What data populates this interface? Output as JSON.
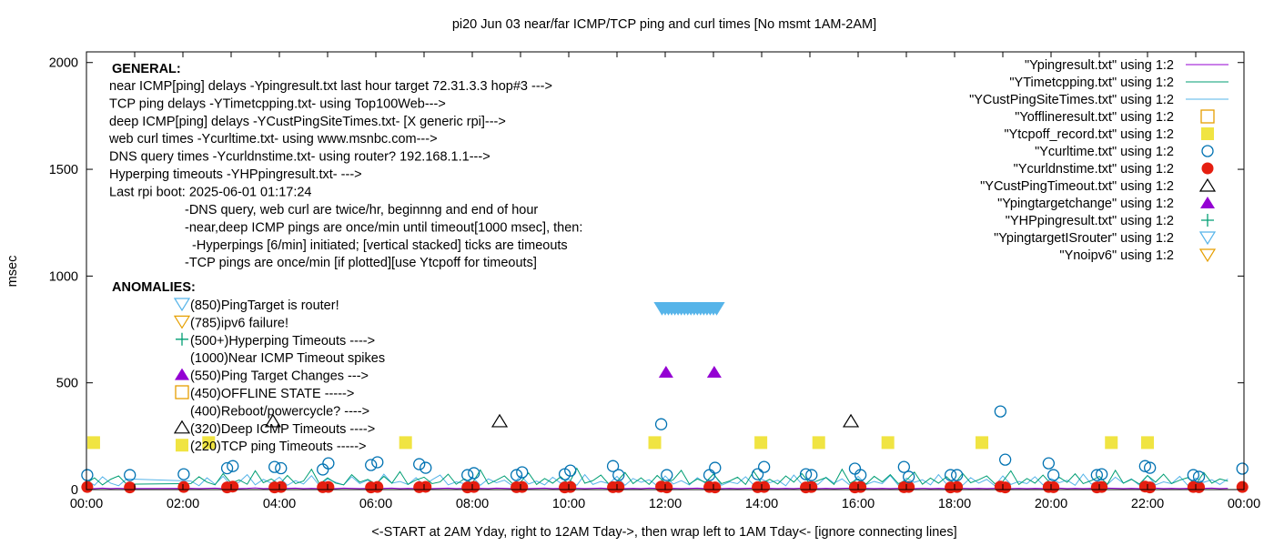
{
  "chart_data": {
    "type": "scatter",
    "title": "pi20 Jun 03  near/far ICMP/TCP ping and curl times [No msmt 1AM-2AM]",
    "xlabel": "<-START at 2AM Yday, right to 12AM Tday->, then wrap left to 1AM Tday<- [ignore connecting lines]",
    "ylabel": "msec",
    "xlim": [
      "00:00",
      "24:00"
    ],
    "ylim": [
      0,
      2050
    ],
    "x_ticks": [
      "00:00",
      "02:00",
      "04:00",
      "06:00",
      "08:00",
      "10:00",
      "12:00",
      "14:00",
      "16:00",
      "18:00",
      "20:00",
      "22:00",
      "00:00"
    ],
    "y_ticks": [
      0,
      500,
      1000,
      1500,
      2000
    ],
    "grid": false,
    "legend_placement": "top-right",
    "colors": {
      "purple": "#9400d3",
      "green": "#009e73",
      "lightblue": "#56b4e9",
      "orange": "#e69f00",
      "yellow": "#f0e442",
      "blue": "#0072b2",
      "red": "#e51e10",
      "black": "#000000"
    },
    "legend": [
      {
        "label": "\"Ypingresult.txt\" using 1:2",
        "style": "line",
        "color": "#9400d3"
      },
      {
        "label": "\"YTimetcpping.txt\" using 1:2",
        "style": "line",
        "color": "#009e73"
      },
      {
        "label": "\"YCustPingSiteTimes.txt\" using 1:2",
        "style": "line",
        "color": "#56b4e9"
      },
      {
        "label": "\"Yofflineresult.txt\" using 1:2",
        "style": "square-open",
        "color": "#e69f00"
      },
      {
        "label": "\"Ytcpoff_record.txt\" using 1:2",
        "style": "square-filled",
        "color": "#f0e442"
      },
      {
        "label": "\"Ycurltime.txt\" using 1:2",
        "style": "circle-open",
        "color": "#0072b2"
      },
      {
        "label": "\"Ycurldnstime.txt\" using 1:2",
        "style": "circle-filled",
        "color": "#e51e10"
      },
      {
        "label": "\"YCustPingTimeout.txt\" using 1:2",
        "style": "triangle-open",
        "color": "#000000"
      },
      {
        "label": "\"Ypingtargetchange\" using 1:2",
        "style": "triangle-filled",
        "color": "#9400d3"
      },
      {
        "label": "\"YHPpingresult.txt\" using 1:2",
        "style": "plus",
        "color": "#009e73"
      },
      {
        "label": "\"YpingtargetISrouter\" using 1:2",
        "style": "triangle-down-open",
        "color": "#56b4e9"
      },
      {
        "label": "\"Ynoipv6\" using 1:2",
        "style": "triangle-down-open",
        "color": "#e69f00"
      }
    ],
    "series": {
      "ping": {
        "segments": [
          {
            "start": "00:00",
            "interval_min": 10,
            "values": [
              6,
              5,
              7,
              5,
              6,
              5
            ]
          },
          {
            "start": "02:10",
            "interval_min": 10,
            "values": [
              6,
              5,
              6,
              7,
              5,
              6,
              5,
              6,
              8,
              5,
              6,
              5,
              6,
              7,
              5,
              6,
              5,
              6,
              5,
              7,
              6,
              5,
              6,
              5,
              6,
              7,
              5,
              6,
              5,
              6,
              5,
              6,
              7,
              5,
              6,
              5,
              6,
              5,
              7,
              6,
              5,
              6,
              5,
              6,
              7,
              5,
              6,
              5,
              6,
              5,
              6,
              7,
              5,
              6,
              5,
              6,
              5,
              7,
              6,
              5,
              6,
              5,
              6,
              7,
              5,
              6,
              5,
              6,
              5,
              6,
              7,
              5,
              6,
              5,
              6,
              5,
              7,
              6,
              5,
              6,
              5,
              6,
              7,
              5,
              6,
              5,
              6,
              5,
              6,
              7,
              5,
              6,
              5,
              6,
              5,
              7,
              6,
              5,
              6,
              5,
              6,
              7,
              5,
              6,
              5,
              6,
              5,
              6,
              7,
              5,
              6,
              5,
              6,
              5,
              7,
              6,
              5,
              6,
              5,
              6,
              7,
              5,
              6,
              5,
              6,
              5,
              6,
              7,
              5,
              6
            ]
          }
        ]
      },
      "tcpping": {
        "segments": [
          {
            "start": "00:00",
            "interval_min": 10,
            "values": [
              30,
              55,
              22,
              48,
              64,
              25
            ]
          },
          {
            "start": "02:10",
            "interval_min": 10,
            "values": [
              28,
              60,
              35,
              22,
              75,
              30,
              45,
              25,
              88,
              32,
              50,
              24,
              66,
              28,
              40,
              95,
              26,
              55,
              30,
              22,
              70,
              35,
              48,
              26,
              62,
              30,
              84,
              24,
              45,
              58,
              28,
              36,
              72,
              25,
              50,
              30,
              92,
              26,
              44,
              64,
              28,
              35,
              78,
              24,
              52,
              30,
              60,
              26,
              100,
              30,
              42,
              68,
              25,
              38,
              80,
              28,
              55,
              24,
              66,
              32,
              46,
              90,
              26,
              50,
              34,
              72,
              28,
              40,
              58,
              24,
              86,
              30,
              48,
              26,
              64,
              35,
              75,
              28,
              42,
              56,
              24,
              95,
              30,
              50,
              26,
              62,
              36,
              70,
              28,
              44,
              82,
              25,
              54,
              30,
              60,
              26,
              76,
              32,
              46,
              64,
              28,
              38,
              88,
              24,
              52,
              30,
              68,
              26,
              58,
              34,
              74,
              28,
              42,
              62,
              25,
              90,
              30,
              48,
              26,
              66,
              35,
              72,
              28,
              44,
              56,
              24,
              80,
              30,
              50,
              40
            ]
          }
        ]
      },
      "custping": {
        "segments": [
          {
            "start": "00:00",
            "interval_min": 10,
            "values": [
              45,
              20,
              60,
              30,
              18,
              50
            ]
          },
          {
            "start": "02:10",
            "interval_min": 10,
            "values": [
              40,
              18,
              55,
              25,
              62,
              20,
              35,
              70,
              22,
              48,
              30,
              58,
              20,
              42,
              26,
              65,
              18,
              50,
              34,
              22,
              60,
              28,
              44,
              20,
              72,
              30,
              38,
              24,
              56,
              20,
              46,
              68,
              22,
              36,
              28,
              60,
              20,
              50,
              32,
              44,
              18,
              66,
              26,
              40,
              22,
              58,
              30,
              48,
              20,
              70,
              24,
              38,
              28,
              62,
              20,
              52,
              34,
              46,
              18,
              64,
              26,
              42,
              22,
              56,
              30,
              74,
              20,
              36,
              28,
              60,
              22,
              48,
              32,
              44,
              18,
              68,
              26,
              40,
              24,
              58,
              30,
              50,
              20,
              62,
              24,
              38,
              28,
              66,
              20,
              54,
              34,
              46,
              22,
              70,
              26,
              42,
              20,
              56,
              30,
              48,
              18,
              64,
              24,
              38,
              28,
              60,
              22,
              52,
              32,
              44,
              20,
              72,
              26,
              40,
              24,
              58,
              30,
              50,
              20,
              66,
              22,
              36,
              28,
              62,
              20,
              54,
              34,
              46,
              24,
              50
            ]
          }
        ]
      }
    },
    "markers": {
      "tcpoff": {
        "y": 220,
        "x": [
          "00:09",
          "02:32",
          "06:37",
          "11:47",
          "13:59",
          "15:11",
          "16:37",
          "18:34",
          "21:15",
          "22:00"
        ]
      },
      "custping_timeout": {
        "y": 320,
        "x": [
          "03:52",
          "08:34",
          "15:51"
        ]
      },
      "pingtarget_change": {
        "y": 550,
        "x": [
          "12:01",
          "13:01"
        ]
      },
      "pingtarget_is_router": {
        "y": 850,
        "x": [
          "11:56",
          "12:00",
          "12:04",
          "12:08",
          "12:12",
          "12:16",
          "12:20",
          "12:24",
          "12:28",
          "12:32",
          "12:36",
          "12:40",
          "12:44",
          "12:48",
          "12:52",
          "12:56",
          "13:00",
          "13:04"
        ]
      },
      "curltime": [
        [
          "00:01",
          68
        ],
        [
          "00:54",
          68
        ],
        [
          "02:01",
          72
        ],
        [
          "02:55",
          100
        ],
        [
          "03:02",
          110
        ],
        [
          "03:54",
          106
        ],
        [
          "04:02",
          100
        ],
        [
          "04:54",
          94
        ],
        [
          "05:01",
          123
        ],
        [
          "05:54",
          115
        ],
        [
          "06:02",
          128
        ],
        [
          "06:54",
          119
        ],
        [
          "07:02",
          102
        ],
        [
          "07:54",
          68
        ],
        [
          "08:02",
          77
        ],
        [
          "08:55",
          68
        ],
        [
          "09:02",
          81
        ],
        [
          "09:55",
          72
        ],
        [
          "10:02",
          89
        ],
        [
          "10:55",
          110
        ],
        [
          "11:02",
          68
        ],
        [
          "11:55",
          306
        ],
        [
          "12:02",
          68
        ],
        [
          "12:55",
          68
        ],
        [
          "13:02",
          102
        ],
        [
          "13:55",
          72
        ],
        [
          "14:03",
          106
        ],
        [
          "14:55",
          72
        ],
        [
          "15:02",
          68
        ],
        [
          "15:56",
          98
        ],
        [
          "16:03",
          68
        ],
        [
          "16:57",
          106
        ],
        [
          "17:03",
          60
        ],
        [
          "17:55",
          68
        ],
        [
          "18:03",
          68
        ],
        [
          "18:57",
          366
        ],
        [
          "19:03",
          140
        ],
        [
          "19:57",
          123
        ],
        [
          "20:03",
          68
        ],
        [
          "20:57",
          68
        ],
        [
          "21:03",
          72
        ],
        [
          "21:57",
          110
        ],
        [
          "22:03",
          102
        ],
        [
          "22:57",
          68
        ],
        [
          "23:04",
          60
        ],
        [
          "23:58",
          98
        ]
      ],
      "curldnstime": [
        [
          "00:01",
          12
        ],
        [
          "00:54",
          10
        ],
        [
          "02:01",
          12
        ],
        [
          "02:55",
          10
        ],
        [
          "03:02",
          14
        ],
        [
          "03:54",
          10
        ],
        [
          "04:02",
          12
        ],
        [
          "04:54",
          11
        ],
        [
          "05:01",
          12
        ],
        [
          "05:54",
          10
        ],
        [
          "06:02",
          12
        ],
        [
          "06:54",
          11
        ],
        [
          "07:02",
          13
        ],
        [
          "07:54",
          10
        ],
        [
          "08:02",
          12
        ],
        [
          "08:55",
          11
        ],
        [
          "09:02",
          12
        ],
        [
          "09:55",
          10
        ],
        [
          "10:02",
          12
        ],
        [
          "10:55",
          11
        ],
        [
          "11:02",
          12
        ],
        [
          "11:55",
          14
        ],
        [
          "12:02",
          10
        ],
        [
          "12:55",
          12
        ],
        [
          "13:02",
          10
        ],
        [
          "13:55",
          11
        ],
        [
          "14:03",
          12
        ],
        [
          "14:55",
          10
        ],
        [
          "15:02",
          12
        ],
        [
          "15:56",
          10
        ],
        [
          "16:03",
          12
        ],
        [
          "16:57",
          11
        ],
        [
          "17:03",
          12
        ],
        [
          "17:55",
          10
        ],
        [
          "18:03",
          12
        ],
        [
          "18:57",
          14
        ],
        [
          "19:03",
          10
        ],
        [
          "19:57",
          12
        ],
        [
          "20:03",
          11
        ],
        [
          "20:57",
          10
        ],
        [
          "21:03",
          12
        ],
        [
          "21:57",
          14
        ],
        [
          "22:03",
          10
        ],
        [
          "22:57",
          12
        ],
        [
          "23:04",
          11
        ],
        [
          "23:58",
          12
        ]
      ]
    },
    "annotations": {
      "general_title": "GENERAL:",
      "general_lines": [
        "near ICMP[ping] delays -Ypingresult.txt last hour target 72.31.3.3 hop#3 --->",
        "TCP ping delays -YTimetcpping.txt- using Top100Web--->",
        "deep ICMP[ping] delays -YCustPingSiteTimes.txt- [X generic rpi]--->",
        "web curl times -Ycurltime.txt- using www.msnbc.com--->",
        "DNS query times -Ycurldnstime.txt- using router? 192.168.1.1--->",
        "Hyperping timeouts -YHPpingresult.txt- --->",
        "Last rpi boot: 2025-06-01 01:17:24"
      ],
      "notes": [
        "-DNS query, web curl are twice/hr, beginnng and end of hour",
        "-near,deep ICMP pings are once/min until timeout[1000 msec], then:",
        "  -Hyperpings [6/min] initiated; [vertical stacked] ticks are timeouts",
        "-TCP pings are once/min [if plotted][use Ytcpoff for timeouts]"
      ],
      "anomalies_title": "ANOMALIES:",
      "anomalies": [
        {
          "text": "(850)PingTarget is router!",
          "symbol": "triangle-down-open",
          "color": "#56b4e9"
        },
        {
          "text": "(785)ipv6 failure!",
          "symbol": "triangle-down-open",
          "color": "#e69f00"
        },
        {
          "text": "(500+)Hyperping Timeouts ---->",
          "symbol": "plus",
          "color": "#009e73"
        },
        {
          "text": "(1000)Near ICMP Timeout spikes",
          "symbol": "",
          "color": ""
        },
        {
          "text": "(550)Ping Target Changes --->",
          "symbol": "triangle-filled",
          "color": "#9400d3"
        },
        {
          "text": "(450)OFFLINE STATE ----->",
          "symbol": "square-open",
          "color": "#e69f00"
        },
        {
          "text": "(400)Reboot/powercycle? ---->",
          "symbol": "",
          "color": ""
        },
        {
          "text": "(320)Deep ICMP Timeouts ---->",
          "symbol": "triangle-open",
          "color": "#000000"
        },
        {
          "text": "(220)TCP ping Timeouts ----->",
          "symbol": "square-filled",
          "color": "#f0e442"
        }
      ]
    }
  }
}
